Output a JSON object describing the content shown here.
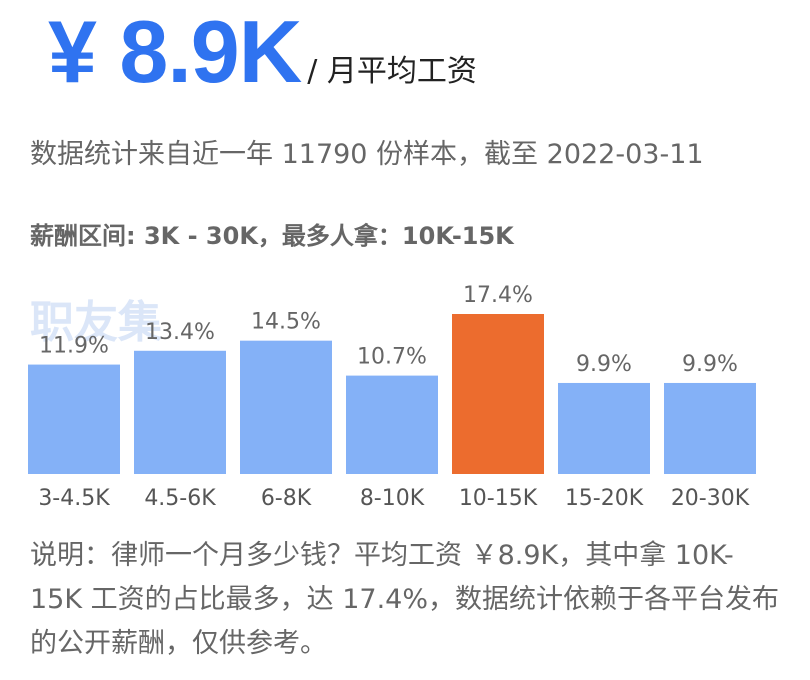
{
  "header": {
    "amount": "¥ 8.9K",
    "unit_label": "/ 月平均工资"
  },
  "subtitle": "数据统计来自近一年 11790 份样本，截至 2022-03-11",
  "range_label": "薪酬区间: 3K - 30K，最多人拿：10K-15K",
  "watermark": "职友集",
  "note": "说明：律师一个月多少钱？平均工资 ￥8.9K，其中拿 10K-15K 工资的占比最多，达 17.4%，数据统计依赖于各平台发布的公开薪酬，仅供参考。",
  "colors": {
    "bar": "#84b1f7",
    "highlight": "#ec6c2e",
    "axis_text": "#555555",
    "label_text": "#666666"
  },
  "chart_data": {
    "type": "bar",
    "categories": [
      "3-4.5K",
      "4.5-6K",
      "6-8K",
      "8-10K",
      "10-15K",
      "15-20K",
      "20-30K"
    ],
    "values": [
      11.9,
      13.4,
      14.5,
      10.7,
      17.4,
      9.9,
      9.9
    ],
    "value_labels": [
      "11.9%",
      "13.4%",
      "14.5%",
      "10.7%",
      "17.4%",
      "9.9%",
      "9.9%"
    ],
    "highlight_index": 4,
    "title": "",
    "xlabel": "",
    "ylabel": "",
    "ylim": [
      0,
      17.4
    ],
    "grid": false,
    "legend": "none"
  }
}
